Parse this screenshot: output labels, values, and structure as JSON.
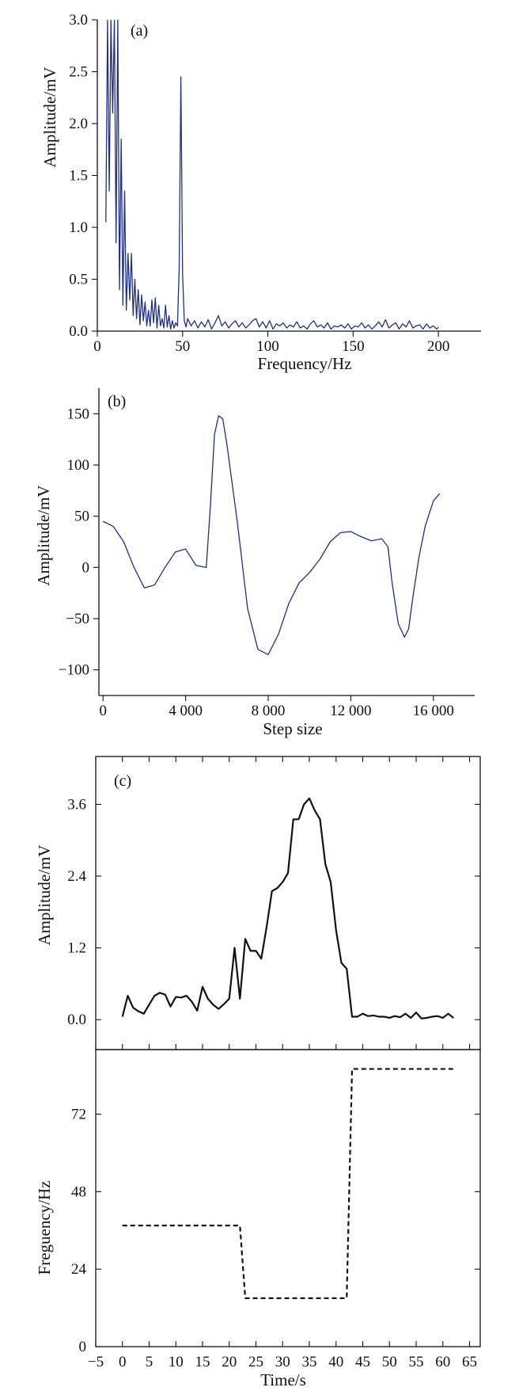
{
  "chart_data": [
    {
      "type": "line",
      "panel_label": "(a)",
      "xlabel": "Frequency/Hz",
      "ylabel": "Amplitude/mV",
      "xlim": [
        0,
        225
      ],
      "ylim": [
        0,
        3.0
      ],
      "x_ticks": [
        0,
        50,
        100,
        150,
        200
      ],
      "x_tick_labels": [
        "0",
        "50",
        "100",
        "150",
        "200"
      ],
      "y_ticks": [
        0,
        0.5,
        1.0,
        1.5,
        2.0,
        2.5,
        3.0
      ],
      "y_tick_labels": [
        "0.0",
        "0.5",
        "1.0",
        "1.5",
        "2.0",
        "2.5",
        "3.0"
      ],
      "line_color": "#1f2f8a",
      "series": [
        {
          "x": [
            5,
            6,
            7,
            8,
            9,
            10,
            11,
            12,
            13,
            14,
            15,
            16,
            17,
            18,
            19,
            20,
            21,
            22,
            23,
            24,
            25,
            26,
            27,
            28,
            29,
            30,
            31,
            32,
            33,
            34,
            35,
            36,
            37,
            38,
            39,
            40,
            41,
            42,
            43,
            44,
            45,
            46,
            47,
            48,
            49,
            50,
            51,
            52,
            53,
            55,
            57,
            59,
            61,
            63,
            65,
            67,
            69,
            71,
            73,
            75,
            77,
            79,
            81,
            83,
            85,
            87,
            89,
            91,
            93,
            95,
            97,
            99,
            101,
            103,
            105,
            107,
            109,
            111,
            113,
            115,
            117,
            119,
            121,
            123,
            125,
            127,
            129,
            131,
            133,
            135,
            137,
            139,
            141,
            143,
            145,
            147,
            149,
            151,
            153,
            155,
            157,
            159,
            161,
            163,
            165,
            167,
            169,
            171,
            173,
            175,
            177,
            179,
            181,
            183,
            185,
            187,
            189,
            191,
            193,
            195,
            197,
            199,
            200
          ],
          "y": [
            1.05,
            3.0,
            1.35,
            3.0,
            2.1,
            3.0,
            0.85,
            3.0,
            0.4,
            1.85,
            0.25,
            1.35,
            0.2,
            0.75,
            0.3,
            0.75,
            0.15,
            0.5,
            0.12,
            0.4,
            0.06,
            0.35,
            0.1,
            0.28,
            0.05,
            0.2,
            0.05,
            0.3,
            0.08,
            0.32,
            0.03,
            0.25,
            0.05,
            0.12,
            0.03,
            0.25,
            0.04,
            0.15,
            0.02,
            0.1,
            0.03,
            0.08,
            0.05,
            0.6,
            2.45,
            0.55,
            0.1,
            0.04,
            0.12,
            0.05,
            0.1,
            0.03,
            0.09,
            0.04,
            0.11,
            0.02,
            0.08,
            0.15,
            0.05,
            0.09,
            0.03,
            0.07,
            0.1,
            0.04,
            0.08,
            0.03,
            0.06,
            0.1,
            0.12,
            0.04,
            0.09,
            0.03,
            0.1,
            0.02,
            0.07,
            0.05,
            0.08,
            0.03,
            0.06,
            0.04,
            0.09,
            0.03,
            0.05,
            0.02,
            0.07,
            0.1,
            0.04,
            0.06,
            0.03,
            0.08,
            0.02,
            0.05,
            0.04,
            0.06,
            0.03,
            0.07,
            0.02,
            0.05,
            0.04,
            0.08,
            0.03,
            0.06,
            0.02,
            0.05,
            0.09,
            0.04,
            0.11,
            0.03,
            0.06,
            0.08,
            0.02,
            0.07,
            0.04,
            0.1,
            0.03,
            0.05,
            0.06,
            0.02,
            0.07,
            0.03,
            0.05,
            0.02,
            0.04
          ]
        }
      ]
    },
    {
      "type": "line",
      "panel_label": "(b)",
      "xlabel": "Step size",
      "ylabel": "Amplitude/mV",
      "xlim": [
        -200,
        18000
      ],
      "ylim": [
        -125,
        175
      ],
      "x_ticks": [
        0,
        4000,
        8000,
        12000,
        16000
      ],
      "x_tick_labels": [
        "0",
        "4 000",
        "8 000",
        "12 000",
        "16 000"
      ],
      "y_ticks": [
        -100,
        -50,
        0,
        50,
        100,
        150
      ],
      "y_tick_labels": [
        "−100",
        "−50",
        "0",
        "50",
        "100",
        "150"
      ],
      "line_color": "#1f2f8a",
      "series": [
        {
          "x": [
            0,
            500,
            1000,
            1500,
            2000,
            2500,
            3000,
            3500,
            4000,
            4500,
            5000,
            5200,
            5400,
            5600,
            5800,
            6000,
            6500,
            7000,
            7500,
            8000,
            8500,
            9000,
            9500,
            10000,
            10500,
            11000,
            11500,
            12000,
            12500,
            13000,
            13500,
            13800,
            14000,
            14300,
            14600,
            14800,
            15000,
            15300,
            15600,
            16000,
            16300
          ],
          "y": [
            45,
            40,
            25,
            0,
            -20,
            -17,
            0,
            15,
            18,
            2,
            0,
            60,
            130,
            148,
            145,
            120,
            45,
            -40,
            -80,
            -85,
            -65,
            -35,
            -15,
            -5,
            8,
            25,
            34,
            35,
            30,
            26,
            28,
            20,
            -15,
            -55,
            -68,
            -60,
            -30,
            10,
            40,
            65,
            72
          ]
        }
      ]
    },
    {
      "type": "line",
      "panel_label": "(c)",
      "xlabel": "Time/s",
      "ylabel": "Amplitude/mV",
      "xlim": [
        -5,
        67
      ],
      "ylim": [
        -0.5,
        4.4
      ],
      "x_ticks": [
        -5,
        0,
        5,
        10,
        15,
        20,
        25,
        30,
        35,
        40,
        45,
        50,
        55,
        60,
        65
      ],
      "x_tick_labels": [
        "−5",
        "0",
        "5",
        "10",
        "15",
        "20",
        "25",
        "30",
        "35",
        "40",
        "45",
        "50",
        "55",
        "60",
        "65"
      ],
      "y_ticks": [
        0.0,
        1.2,
        2.4,
        3.6
      ],
      "y_tick_labels": [
        "0.0",
        "1.2",
        "2.4",
        "3.6"
      ],
      "line_color": "#111111",
      "series": [
        {
          "x": [
            0,
            1,
            2,
            3,
            4,
            5,
            6,
            7,
            8,
            9,
            10,
            11,
            12,
            13,
            14,
            15,
            16,
            17,
            18,
            19,
            20,
            21,
            22,
            23,
            24,
            25,
            26,
            27,
            28,
            29,
            30,
            31,
            32,
            33,
            34,
            35,
            36,
            37,
            38,
            39,
            40,
            41,
            42,
            43,
            44,
            45,
            46,
            47,
            48,
            49,
            50,
            51,
            52,
            53,
            54,
            55,
            56,
            57,
            58,
            59,
            60,
            61,
            62
          ],
          "y": [
            0.05,
            0.4,
            0.2,
            0.14,
            0.1,
            0.25,
            0.4,
            0.45,
            0.42,
            0.22,
            0.38,
            0.37,
            0.4,
            0.3,
            0.15,
            0.55,
            0.35,
            0.25,
            0.18,
            0.26,
            0.35,
            1.2,
            0.35,
            1.35,
            1.15,
            1.15,
            1.02,
            1.55,
            2.15,
            2.2,
            2.3,
            2.45,
            3.35,
            3.35,
            3.6,
            3.7,
            3.5,
            3.35,
            2.6,
            2.3,
            1.5,
            0.95,
            0.85,
            0.05,
            0.05,
            0.1,
            0.06,
            0.07,
            0.05,
            0.05,
            0.03,
            0.06,
            0.04,
            0.1,
            0.03,
            0.12,
            0.02,
            0.03,
            0.05,
            0.06,
            0.03,
            0.1,
            0.03
          ]
        }
      ]
    },
    {
      "type": "line",
      "xlabel": "Time/s",
      "ylabel": "Freguency/Hz",
      "xlim": [
        -5,
        67
      ],
      "ylim": [
        0,
        92
      ],
      "x_ticks": [
        -5,
        0,
        5,
        10,
        15,
        20,
        25,
        30,
        35,
        40,
        45,
        50,
        55,
        60,
        65
      ],
      "x_tick_labels": [
        "−5",
        "0",
        "5",
        "10",
        "15",
        "20",
        "25",
        "30",
        "35",
        "40",
        "45",
        "50",
        "55",
        "60",
        "65"
      ],
      "y_ticks": [
        0,
        24,
        48,
        72
      ],
      "y_tick_labels": [
        "0",
        "24",
        "48",
        "72"
      ],
      "line_style": "dashed",
      "line_color": "#111111",
      "series": [
        {
          "x": [
            0,
            22,
            23,
            42,
            43,
            62
          ],
          "y": [
            37.5,
            37.5,
            15,
            15,
            86,
            86
          ]
        }
      ]
    }
  ]
}
